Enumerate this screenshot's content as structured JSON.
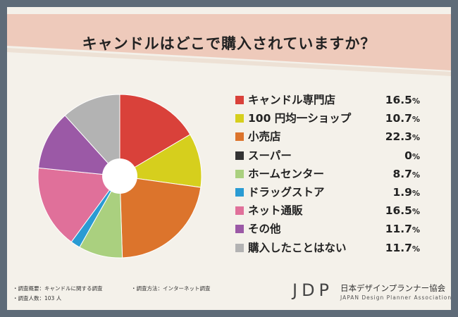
{
  "title": "キャンドルはどこで購入されていますか？",
  "chart_data": {
    "type": "pie",
    "categories": [
      "キャンドル専門店",
      "100 円均一ショップ",
      "小売店",
      "スーパー",
      "ホームセンター",
      "ドラッグストア",
      "ネット通販",
      "その他",
      "購入したことはない"
    ],
    "values": [
      16.5,
      10.7,
      22.3,
      0,
      8.7,
      1.9,
      16.5,
      11.7,
      11.7
    ],
    "value_labels": [
      "16.5",
      "10.7",
      "22.3",
      "0",
      "8.7",
      "1.9",
      "16.5",
      "11.7",
      "11.7"
    ],
    "unit": "%",
    "colors": [
      "#d9413a",
      "#d6cf1d",
      "#dc742c",
      "#333333",
      "#aad07f",
      "#2a9bd3",
      "#e0709a",
      "#9b59a6",
      "#b3b3b3"
    ],
    "legend_position": "right",
    "donut": true
  },
  "footnotes": {
    "survey_overview": "・調査概要：キャンドルに関する調査",
    "survey_method": "・調査方法：インターネット調査",
    "respondents": "・調査人数：103 人"
  },
  "logo": {
    "mark": "JDP",
    "name_ja": "日本デザインプランナー協会",
    "name_en": "JAPAN Design Planner Association"
  }
}
